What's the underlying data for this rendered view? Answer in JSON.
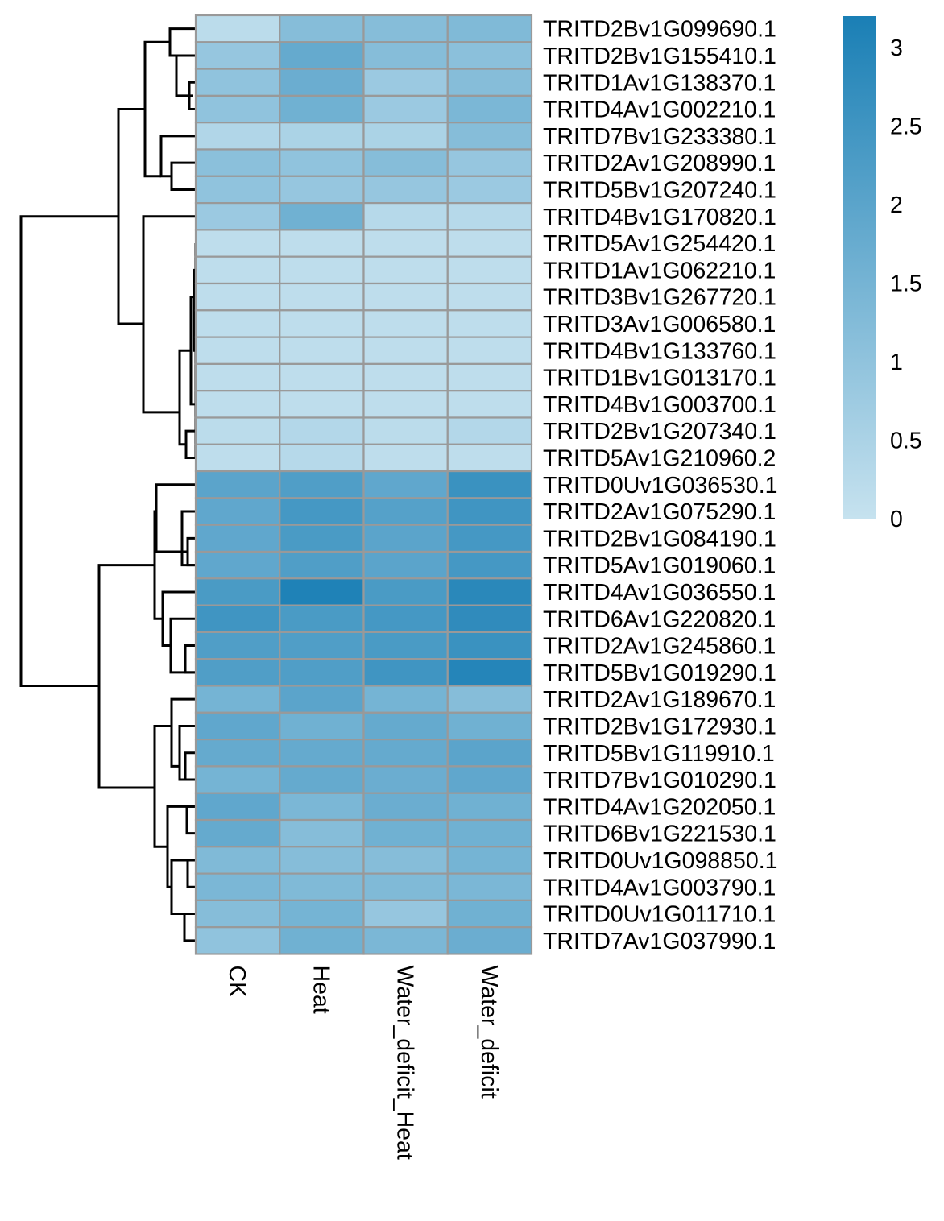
{
  "chart_data": {
    "type": "heatmap",
    "title": "",
    "xlabel": "",
    "ylabel": "",
    "columns": [
      "CK",
      "Heat",
      "Water_deficit_Heat",
      "Water_deficit"
    ],
    "rows": [
      "TRITD2Bv1G099690.1",
      "TRITD2Bv1G155410.1",
      "TRITD1Av1G138370.1",
      "TRITD4Av1G002210.1",
      "TRITD7Bv1G233380.1",
      "TRITD2Av1G208990.1",
      "TRITD5Bv1G207240.1",
      "TRITD4Bv1G170820.1",
      "TRITD5Av1G254420.1",
      "TRITD1Av1G062210.1",
      "TRITD3Bv1G267720.1",
      "TRITD3Av1G006580.1",
      "TRITD4Bv1G133760.1",
      "TRITD1Bv1G013170.1",
      "TRITD4Bv1G003700.1",
      "TRITD2Bv1G207340.1",
      "TRITD5Av1G210960.2",
      "TRITD0Uv1G036530.1",
      "TRITD2Av1G075290.1",
      "TRITD2Bv1G084190.1",
      "TRITD5Av1G019060.1",
      "TRITD4Av1G036550.1",
      "TRITD6Av1G220820.1",
      "TRITD2Av1G245860.1",
      "TRITD5Bv1G019290.1",
      "TRITD2Av1G189670.1",
      "TRITD2Bv1G172930.1",
      "TRITD5Bv1G119910.1",
      "TRITD7Bv1G010290.1",
      "TRITD4Av1G202050.1",
      "TRITD6Bv1G221530.1",
      "TRITD0Uv1G098850.1",
      "TRITD4Av1G003790.1",
      "TRITD0Uv1G011710.1",
      "TRITD7Av1G037990.1"
    ],
    "values": [
      [
        0.2,
        1.2,
        1.2,
        1.3
      ],
      [
        0.9,
        1.8,
        1.2,
        1.1
      ],
      [
        1.0,
        1.7,
        0.8,
        1.2
      ],
      [
        1.0,
        1.6,
        0.8,
        1.4
      ],
      [
        0.4,
        0.5,
        0.5,
        1.2
      ],
      [
        1.1,
        1.0,
        1.2,
        0.9
      ],
      [
        1.0,
        0.9,
        0.9,
        0.8
      ],
      [
        0.8,
        1.6,
        0.3,
        0.3
      ],
      [
        0.15,
        0.15,
        0.15,
        0.15
      ],
      [
        0.15,
        0.15,
        0.15,
        0.15
      ],
      [
        0.15,
        0.15,
        0.15,
        0.15
      ],
      [
        0.15,
        0.15,
        0.15,
        0.15
      ],
      [
        0.15,
        0.15,
        0.15,
        0.15
      ],
      [
        0.15,
        0.15,
        0.15,
        0.15
      ],
      [
        0.15,
        0.15,
        0.15,
        0.15
      ],
      [
        0.2,
        0.35,
        0.2,
        0.35
      ],
      [
        0.15,
        0.3,
        0.15,
        0.15
      ],
      [
        2.0,
        2.2,
        1.9,
        2.6
      ],
      [
        1.9,
        2.4,
        2.1,
        2.5
      ],
      [
        1.9,
        2.3,
        2.0,
        2.4
      ],
      [
        1.9,
        2.2,
        2.0,
        2.4
      ],
      [
        2.3,
        3.1,
        2.3,
        2.9
      ],
      [
        2.5,
        2.3,
        2.4,
        2.8
      ],
      [
        2.2,
        2.2,
        2.3,
        2.6
      ],
      [
        2.2,
        2.2,
        2.5,
        3.0
      ],
      [
        1.5,
        2.0,
        1.5,
        1.2
      ],
      [
        1.9,
        1.6,
        1.8,
        1.6
      ],
      [
        1.8,
        1.8,
        1.8,
        2.0
      ],
      [
        1.5,
        1.8,
        1.7,
        1.9
      ],
      [
        1.9,
        1.4,
        1.7,
        1.6
      ],
      [
        1.8,
        1.2,
        1.6,
        1.6
      ],
      [
        1.3,
        1.2,
        1.2,
        1.5
      ],
      [
        1.4,
        1.3,
        1.3,
        1.4
      ],
      [
        1.2,
        1.5,
        0.9,
        1.6
      ],
      [
        1.0,
        1.6,
        1.4,
        1.7
      ]
    ],
    "colorbar": {
      "min": 0,
      "max": 3.2,
      "ticks": [
        0,
        0.5,
        1,
        1.5,
        2,
        2.5,
        3
      ],
      "tick_labels": [
        "0",
        "0.5",
        "1",
        "1.5",
        "2",
        "2.5",
        "3"
      ],
      "color_low": "#c6e2ef",
      "color_high": "#1a7fb5"
    },
    "cell_border_color": "#999999",
    "dendrogram": "rows clustered; columns not clustered",
    "legend_position": "top-right"
  }
}
